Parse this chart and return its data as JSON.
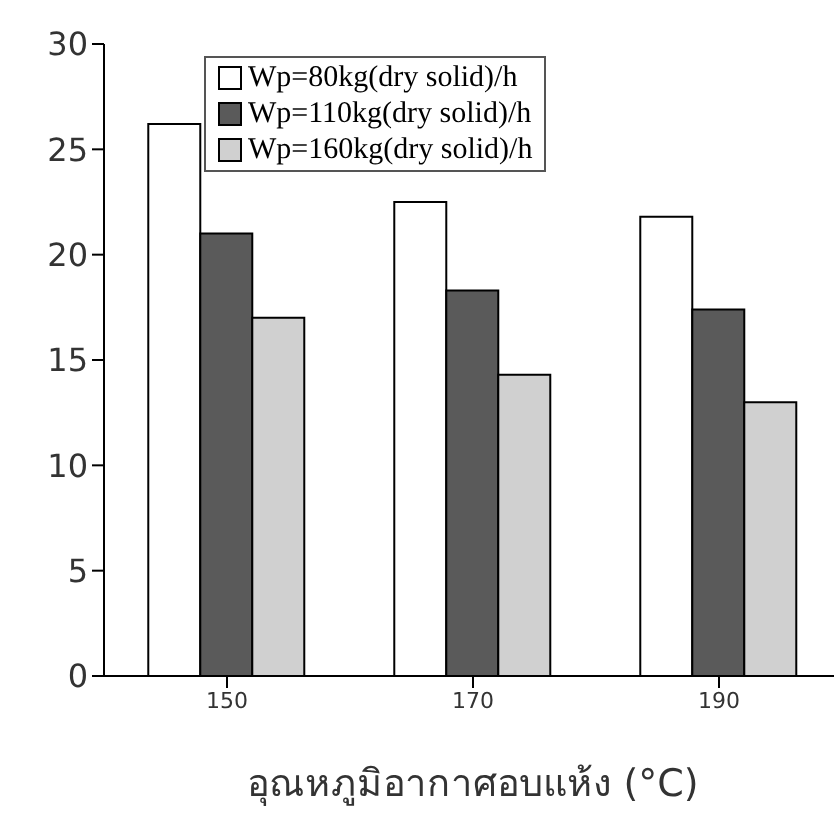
{
  "chart_data": {
    "type": "bar",
    "xlabel": "อุณหภูมิอากาศอบแห้ง (°C)",
    "categories": [
      "150",
      "170",
      "190"
    ],
    "series": [
      {
        "name": "Wp=80kg(dry solid)/h",
        "color": "#ffffff",
        "values": [
          26.2,
          22.5,
          21.8
        ]
      },
      {
        "name": "Wp=110kg(dry solid)/h",
        "color": "#5a5a5a",
        "values": [
          21.0,
          18.3,
          17.4
        ]
      },
      {
        "name": "Wp=160kg(dry solid)/h",
        "color": "#d0d0d0",
        "values": [
          17.0,
          14.3,
          13.0
        ]
      }
    ],
    "ylim": [
      0,
      30
    ],
    "yticks": [
      0,
      5,
      10,
      15,
      20,
      25,
      30
    ],
    "grid": false,
    "legend": "top"
  }
}
